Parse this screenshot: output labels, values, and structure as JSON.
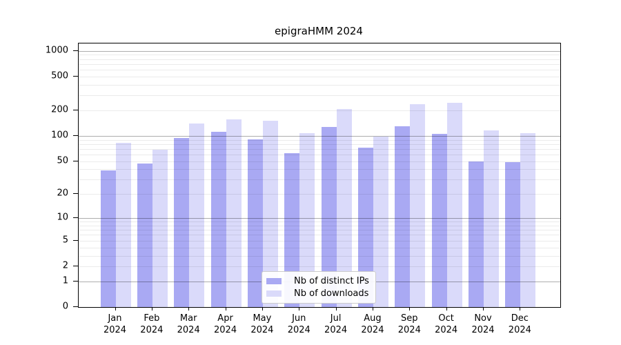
{
  "title": "epigraHMM 2024",
  "chart_data": {
    "type": "bar",
    "title": "epigraHMM 2024",
    "yscale": "log1p",
    "grid": true,
    "legend_position": "inside-bottom-center",
    "year": "2024",
    "months": [
      "Jan",
      "Feb",
      "Mar",
      "Apr",
      "May",
      "Jun",
      "Jul",
      "Aug",
      "Sep",
      "Oct",
      "Nov",
      "Dec"
    ],
    "categories": [
      "Jan 2024",
      "Feb 2024",
      "Mar 2024",
      "Apr 2024",
      "May 2024",
      "Jun 2024",
      "Jul 2024",
      "Aug 2024",
      "Sep 2024",
      "Oct 2024",
      "Nov 2024",
      "Dec 2024"
    ],
    "series": [
      {
        "name": "Nb of distinct IPs",
        "color": "#a9a9f3",
        "values": [
          39,
          47,
          95,
          111,
          91,
          62,
          128,
          73,
          129,
          106,
          50,
          49
        ]
      },
      {
        "name": "Nb of downloads",
        "color": "#dadafa",
        "values": [
          82,
          68,
          139,
          156,
          152,
          108,
          207,
          97,
          235,
          247,
          116,
          107
        ]
      }
    ],
    "y_ticks": [
      0,
      1,
      2,
      5,
      10,
      20,
      50,
      100,
      200,
      500,
      1000
    ],
    "y_major_gridlines": [
      1,
      10,
      100,
      1000
    ],
    "ylim": [
      0,
      1230
    ],
    "xlabel": "",
    "ylabel": ""
  },
  "legend": {
    "items": [
      {
        "label": "Nb of distinct IPs",
        "color": "#a9a9f3"
      },
      {
        "label": "Nb of downloads",
        "color": "#dadafa"
      }
    ]
  }
}
